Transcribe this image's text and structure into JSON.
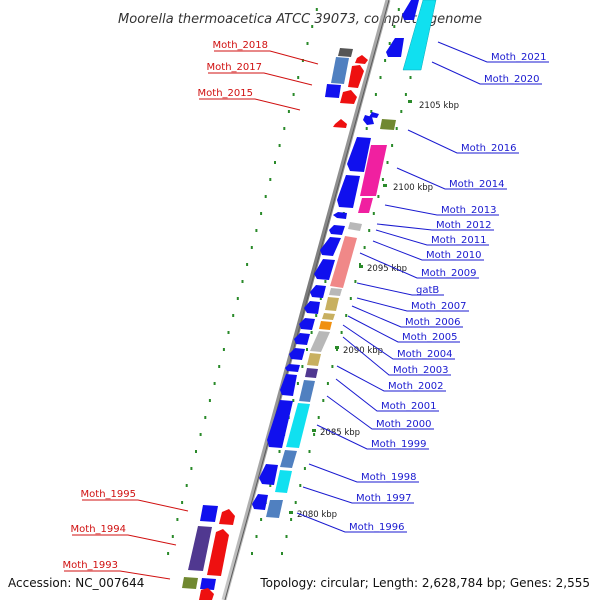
{
  "title": "Moorella thermoacetica ATCC 39073, complete genome",
  "footer": {
    "accession": "Accession: NC_007644",
    "summary": "Topology: circular; Length: 2,628,784 bp; Genes: 2,555"
  },
  "ticks": [
    {
      "label": "2105 kbp"
    },
    {
      "label": "2100 kbp"
    },
    {
      "label": "2095 kbp"
    },
    {
      "label": "2090 kbp"
    },
    {
      "label": "2085 kbp"
    },
    {
      "label": "2080 kbp"
    }
  ],
  "right_labels": [
    "Moth_2021",
    "Moth_2020",
    "Moth_2016",
    "Moth_2014",
    "Moth_2013",
    "Moth_2012",
    "Moth_2011",
    "Moth_2010",
    "Moth_2009",
    "gatB",
    "Moth_2007",
    "Moth_2006",
    "Moth_2005",
    "Moth_2004",
    "Moth_2003",
    "Moth_2002",
    "Moth_2001",
    "Moth_2000",
    "Moth_1999",
    "Moth_1998",
    "Moth_1997",
    "Moth_1996"
  ],
  "left_labels": [
    "Moth_2018",
    "Moth_2017",
    "Moth_2015",
    "Moth_1995",
    "Moth_1994",
    "Moth_1993"
  ],
  "colors": {
    "forward_arrow": "#1010ee",
    "reverse_arrow": "#ee1010",
    "right_label": "#1a1ad0",
    "left_label": "#d01010",
    "backbone": "#808080",
    "tick": "#2a8a2a",
    "cds_cyan": "#10e0f0",
    "cds_magenta": "#f020a0",
    "cds_pink": "#f08888",
    "cds_olive": "#c8b060",
    "cds_orange": "#f09010",
    "cds_steel": "#5080c0",
    "cds_indigo": "#503890",
    "cds_grey": "#b8b8b8",
    "cds_green": "#708830"
  }
}
